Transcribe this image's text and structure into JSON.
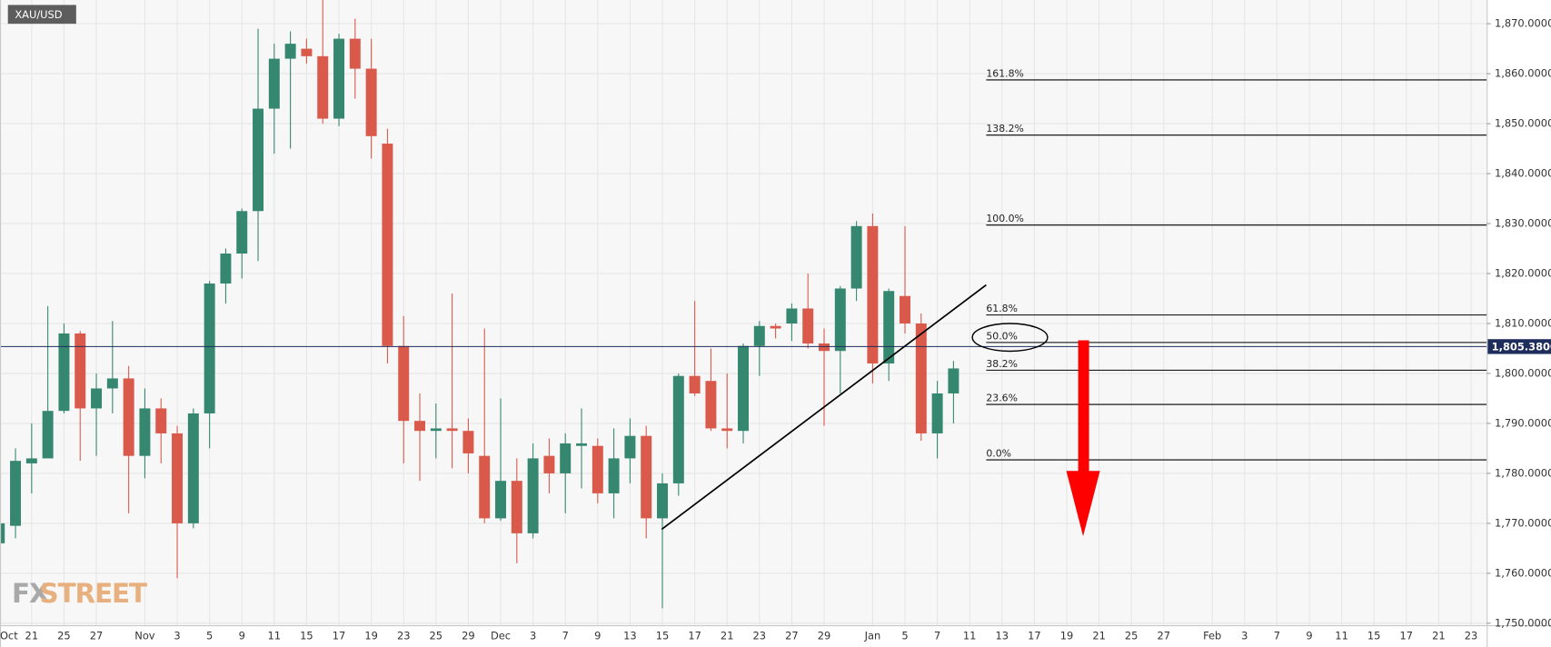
{
  "chart_data": {
    "type": "candlestick",
    "symbol": "XAU/USD",
    "categories": [
      "Oct",
      null,
      "21",
      null,
      "25",
      null,
      "27",
      null,
      null,
      "Nov",
      null,
      "3",
      null,
      "5",
      null,
      "9",
      null,
      "11",
      null,
      "15",
      null,
      "17",
      null,
      "19",
      null,
      "23",
      null,
      "25",
      null,
      "29",
      null,
      "Dec",
      null,
      "3",
      null,
      "7",
      null,
      "9",
      null,
      "13",
      null,
      "15",
      null,
      "17",
      null,
      "21",
      null,
      "23",
      null,
      "27",
      null,
      "29",
      null,
      null,
      "Jan",
      null,
      "5",
      null,
      "7",
      null,
      "11",
      null,
      "13",
      null,
      "17",
      null,
      "19",
      null,
      "21",
      null,
      "25",
      null,
      "27",
      null,
      null,
      "Feb",
      null,
      "3",
      null,
      "7",
      null,
      "9",
      null,
      "11",
      null,
      "15",
      null,
      "17",
      null,
      "21",
      null,
      "23",
      null
    ],
    "open": [
      1766,
      1769.5,
      1782,
      1783,
      1792.5,
      1808,
      1793,
      1797,
      1799,
      1783.5,
      1793,
      1788,
      1770,
      1792,
      1818,
      1824,
      1832.5,
      1853,
      1863,
      1865,
      1863.5,
      1851,
      1867,
      1861,
      1846,
      1805.5,
      1790.5,
      1788.5,
      1789,
      1788.5,
      1783.5,
      1771,
      1778.5,
      1768,
      1783.5,
      1780,
      1785.5,
      1785.5,
      1776,
      1783,
      1787.5,
      1771,
      1778,
      1799.5,
      1798.5,
      1789,
      1788.5,
      1805.5,
      1809.5,
      1810,
      1813,
      1806,
      1804.5,
      1817,
      1829.5,
      1802,
      1815.5,
      1810,
      1788,
      1796,
      null,
      null,
      null,
      null,
      null,
      null,
      null,
      null,
      null,
      null,
      null,
      null,
      null,
      null,
      null,
      null,
      null,
      null,
      null,
      null,
      null,
      null,
      null,
      null,
      null,
      null,
      null,
      null,
      null,
      null,
      null,
      null,
      null
    ],
    "high": [
      1775,
      1785,
      1790,
      1813.5,
      1810,
      1808.5,
      1800,
      1810.5,
      1801.5,
      1797,
      1795,
      1789.5,
      1793,
      1818.5,
      1825,
      1833,
      1869,
      1866,
      1868.5,
      1867,
      1875,
      1868,
      1871,
      1867,
      1849,
      1811.5,
      1796,
      1794,
      1816,
      1791,
      1809,
      1795,
      1783,
      1786,
      1787,
      1788,
      1793,
      1787,
      1789,
      1791,
      1789.5,
      1780,
      1800,
      1814.5,
      1805,
      1800,
      1806,
      1810.5,
      1810,
      1814,
      1820,
      1809,
      1817.5,
      1830.5,
      1832,
      1817,
      1829.5,
      1812,
      1798.5,
      1802.5,
      null,
      null,
      null,
      null,
      null,
      null,
      null,
      null,
      null,
      null,
      null,
      null,
      null,
      null,
      null,
      null,
      null,
      null,
      null,
      null,
      null,
      null,
      null,
      null,
      null,
      null,
      null,
      null,
      null,
      null,
      null,
      null,
      null
    ],
    "low": [
      1763,
      1767,
      1776,
      1783,
      1792,
      1782.5,
      1783.5,
      1792,
      1772,
      1779,
      1782,
      1759,
      1769,
      1785,
      1814,
      1819,
      1822.5,
      1844,
      1845,
      1862,
      1850,
      1849.5,
      1855,
      1843,
      1802,
      1782,
      1778.5,
      1783,
      1781,
      1780,
      1770,
      1770.5,
      1762,
      1767,
      1776,
      1772,
      1777,
      1774,
      1771,
      1778,
      1767,
      1753,
      1775.5,
      1795.5,
      1788.5,
      1785,
      1786,
      1799.5,
      1807,
      1806.5,
      1805,
      1789.5,
      1796,
      1814.5,
      1798,
      1798.5,
      1808,
      1786.5,
      1783,
      1790,
      null,
      null,
      null,
      null,
      null,
      null,
      null,
      null,
      null,
      null,
      null,
      null,
      null,
      null,
      null,
      null,
      null,
      null,
      null,
      null,
      null,
      null,
      null,
      null,
      null,
      null,
      null,
      null,
      null,
      null,
      null,
      null,
      null
    ],
    "close": [
      1770,
      1782.5,
      1783,
      1792.5,
      1808,
      1793,
      1797,
      1799,
      1783.5,
      1793,
      1788,
      1770,
      1792,
      1818,
      1824,
      1832.5,
      1853,
      1863,
      1866,
      1863.5,
      1851,
      1867,
      1861,
      1847.5,
      1805.5,
      1790.5,
      1788.5,
      1789,
      1788.5,
      1784,
      1771,
      1778.5,
      1768,
      1783,
      1780,
      1786,
      1786,
      1776,
      1783,
      1787.5,
      1771,
      1778,
      1799.5,
      1796,
      1789,
      1788.5,
      1805.5,
      1809.5,
      1809,
      1813,
      1806,
      1804.5,
      1817,
      1829.5,
      1802,
      1816.5,
      1810,
      1788,
      1796,
      1801,
      null,
      null,
      null,
      null,
      null,
      null,
      null,
      null,
      null,
      null,
      null,
      null,
      null,
      null,
      null,
      null,
      null,
      null,
      null,
      null,
      null,
      null,
      null,
      null,
      null,
      null,
      null,
      null,
      null,
      null,
      null,
      null,
      null
    ],
    "up_color": "#36876f",
    "down_color": "#d9594b",
    "ylim": [
      1749.6,
      1874.75
    ],
    "yticks": [
      {
        "value": 1750,
        "label": "1,750.0000"
      },
      {
        "value": 1760,
        "label": "1,760.0000"
      },
      {
        "value": 1770,
        "label": "1,770.0000"
      },
      {
        "value": 1780,
        "label": "1,780.0000"
      },
      {
        "value": 1790,
        "label": "1,790.0000"
      },
      {
        "value": 1800,
        "label": "1,800.0000"
      },
      {
        "value": 1810,
        "label": "1,810.0000"
      },
      {
        "value": 1820,
        "label": "1,820.0000"
      },
      {
        "value": 1830,
        "label": "1,830.0000"
      },
      {
        "value": 1840,
        "label": "1,840.0000"
      },
      {
        "value": 1850,
        "label": "1,850.0000"
      },
      {
        "value": 1860,
        "label": "1,860.0000"
      },
      {
        "value": 1870,
        "label": "1,870.0000"
      }
    ],
    "grid": true,
    "last_price": {
      "value": 1805.38,
      "label": "1,805.3800",
      "color": "#1f2d5c"
    },
    "fib_levels": [
      {
        "label": "161.8%",
        "value": 1858.75
      },
      {
        "label": "138.2%",
        "value": 1847.7
      },
      {
        "label": "100.0%",
        "value": 1829.7
      },
      {
        "label": "61.8%",
        "value": 1811.7
      },
      {
        "label": "50.0%",
        "value": 1806.2
      },
      {
        "label": "38.2%",
        "value": 1800.65
      },
      {
        "label": "23.6%",
        "value": 1793.8
      },
      {
        "label": "0.0%",
        "value": 1782.7
      }
    ]
  },
  "watermark": {
    "part1": "FX",
    "part2": "STREET"
  }
}
